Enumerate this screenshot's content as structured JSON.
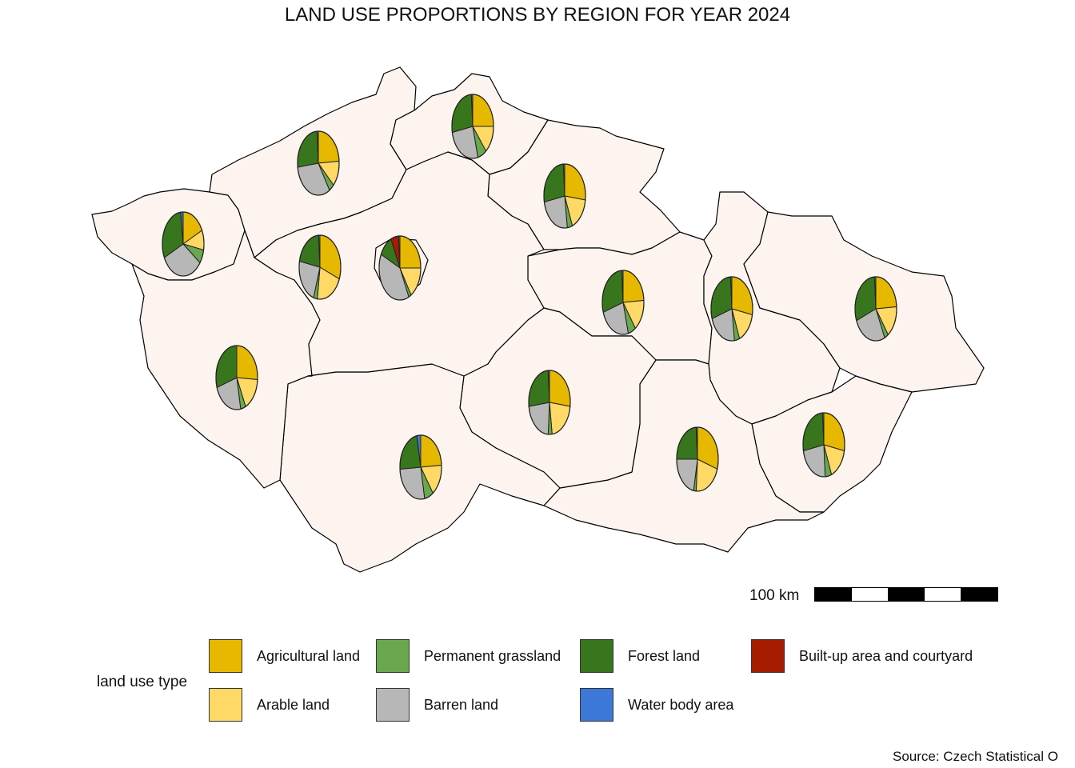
{
  "title": "LAND USE PROPORTIONS BY REGION FOR YEAR 2024",
  "scale_bar": {
    "label": "100 km",
    "segments": [
      "black",
      "white",
      "black",
      "white",
      "black"
    ]
  },
  "legend": {
    "title": "land use type",
    "items": [
      {
        "label": "Agricultural land",
        "color": "#e6b800"
      },
      {
        "label": "Permanent grassland",
        "color": "#6aa84f"
      },
      {
        "label": "Forest land",
        "color": "#38761d"
      },
      {
        "label": "Built-up area and courtyard",
        "color": "#a61c00"
      },
      {
        "label": "Arable land",
        "color": "#ffd966"
      },
      {
        "label": "Barren land",
        "color": "#b7b7b7"
      },
      {
        "label": "Water body area",
        "color": "#3c78d8"
      }
    ]
  },
  "source": "Source: Czech Statistical O",
  "chart_data": {
    "type": "pie",
    "categories": [
      "Agricultural land",
      "Arable land",
      "Permanent grassland",
      "Barren land",
      "Forest land",
      "Built-up area and courtyard",
      "Water body area"
    ],
    "regions": [
      {
        "values": [
          0.18,
          0.1,
          0.07,
          0.33,
          0.3,
          0.0,
          0.02
        ]
      },
      {
        "values": [
          0.24,
          0.13,
          0.04,
          0.32,
          0.26,
          0.0,
          0.01
        ]
      },
      {
        "values": [
          0.25,
          0.14,
          0.07,
          0.26,
          0.27,
          0.0,
          0.01
        ]
      },
      {
        "values": [
          0.27,
          0.17,
          0.04,
          0.24,
          0.27,
          0.0,
          0.01
        ]
      },
      {
        "values": [
          0.31,
          0.21,
          0.03,
          0.23,
          0.21,
          0.0,
          0.01
        ]
      },
      {
        "values": [
          0.25,
          0.16,
          0.02,
          0.39,
          0.11,
          0.06,
          0.01
        ]
      },
      {
        "values": [
          0.26,
          0.17,
          0.04,
          0.23,
          0.3,
          0.0,
          0.0
        ]
      },
      {
        "values": [
          0.24,
          0.16,
          0.06,
          0.24,
          0.29,
          0.0,
          0.01
        ]
      },
      {
        "values": [
          0.28,
          0.16,
          0.04,
          0.22,
          0.29,
          0.0,
          0.01
        ]
      },
      {
        "values": [
          0.24,
          0.16,
          0.03,
          0.26,
          0.3,
          0.0,
          0.01
        ]
      },
      {
        "values": [
          0.27,
          0.21,
          0.03,
          0.22,
          0.26,
          0.0,
          0.01
        ]
      },
      {
        "values": [
          0.24,
          0.16,
          0.07,
          0.27,
          0.23,
          0.0,
          0.03
        ]
      },
      {
        "values": [
          0.3,
          0.21,
          0.02,
          0.22,
          0.24,
          0.0,
          0.01
        ]
      },
      {
        "values": [
          0.28,
          0.16,
          0.05,
          0.23,
          0.27,
          0.0,
          0.01
        ]
      }
    ]
  }
}
